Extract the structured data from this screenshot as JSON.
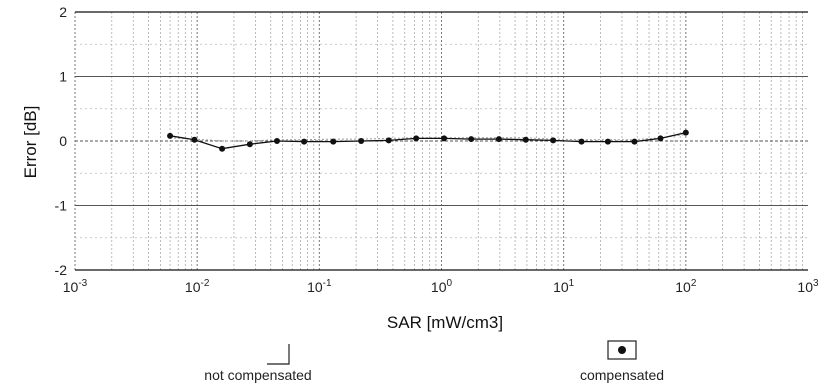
{
  "chart_data": {
    "type": "line",
    "title": "",
    "xlabel": "SAR [mW/cm3]",
    "ylabel": "Error [dB]",
    "x_scale": "log",
    "xlim": [
      0.001,
      1000
    ],
    "ylim": [
      -2,
      2
    ],
    "grid": true,
    "x_tick_labels": [
      {
        "value": 0.001,
        "base": "10",
        "exp": "-3"
      },
      {
        "value": 0.01,
        "base": "10",
        "exp": "-2"
      },
      {
        "value": 0.1,
        "base": "10",
        "exp": "-1"
      },
      {
        "value": 1,
        "base": "10",
        "exp": "0"
      },
      {
        "value": 10,
        "base": "10",
        "exp": "1"
      },
      {
        "value": 100,
        "base": "10",
        "exp": "2"
      },
      {
        "value": 1000,
        "base": "10",
        "exp": "3"
      }
    ],
    "y_tick_labels": [
      "2",
      "1",
      "0",
      "-1",
      "-2"
    ],
    "series": [
      {
        "name": "not compensated",
        "marker": "none",
        "color": "#9a9a9a",
        "x": [
          0.006,
          0.0095,
          0.016,
          0.027,
          0.045,
          0.075,
          0.13,
          0.22,
          0.37,
          0.62,
          1.05,
          1.75,
          2.95,
          4.9,
          8.2,
          14,
          23,
          38,
          62,
          100
        ],
        "y": [
          0.05,
          0.03,
          0.0,
          0.0,
          0.02,
          0.02,
          0.03,
          0.03,
          0.04,
          0.05,
          0.05,
          0.05,
          0.05,
          0.05,
          0.03,
          0.02,
          0.02,
          0.02,
          0.05,
          0.1
        ]
      },
      {
        "name": "compensated",
        "marker": "filled-circle",
        "color": "#111111",
        "x": [
          0.006,
          0.0095,
          0.016,
          0.027,
          0.045,
          0.075,
          0.13,
          0.22,
          0.37,
          0.62,
          1.05,
          1.75,
          2.95,
          4.9,
          8.2,
          14,
          23,
          38,
          62,
          100
        ],
        "y": [
          0.08,
          0.02,
          -0.12,
          -0.05,
          0.0,
          -0.01,
          -0.01,
          0.0,
          0.01,
          0.04,
          0.04,
          0.03,
          0.03,
          0.02,
          0.01,
          -0.01,
          -0.01,
          -0.01,
          0.04,
          0.13
        ]
      }
    ],
    "legend": {
      "placement": "bottom",
      "items": [
        {
          "label": "not compensated",
          "symbol": "line"
        },
        {
          "label": "compensated",
          "symbol": "filled-circle-in-box"
        }
      ]
    }
  }
}
